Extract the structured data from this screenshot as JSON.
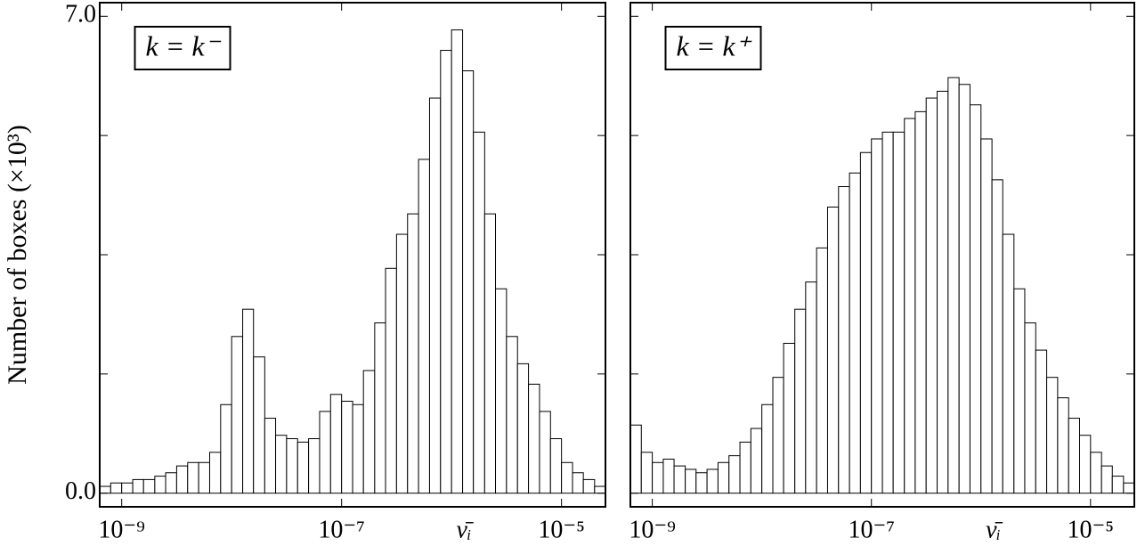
{
  "chart_data": [
    {
      "type": "histogram",
      "annotation": "k = k⁻",
      "ylabel": "Number of boxes (×10³)",
      "xlabel": "ν̄ᵢ",
      "log_x": true,
      "color": "#ffffff",
      "edgecolor": "#000000",
      "xlim": [
        6.31e-10,
        2.51e-05
      ],
      "ylim": [
        -0.2,
        7.2
      ],
      "xticks": [
        {
          "value": 1e-09,
          "label": "10⁻⁹"
        },
        {
          "value": 1e-07,
          "label": "10⁻⁷"
        },
        {
          "value": 1e-05,
          "label": "10⁻⁵"
        }
      ],
      "yticks": [
        {
          "value": 0,
          "label": "0.0"
        },
        1.75,
        3.5,
        5.25,
        {
          "value": 7,
          "label": "7.0"
        }
      ],
      "bins": [
        6.31e-10,
        7.94e-10,
        1e-09,
        1.26e-09,
        1.58e-09,
        2e-09,
        2.51e-09,
        3.16e-09,
        3.98e-09,
        5.01e-09,
        6.31e-09,
        7.94e-09,
        1e-08,
        1.26e-08,
        1.58e-08,
        2e-08,
        2.51e-08,
        3.16e-08,
        3.98e-08,
        5.01e-08,
        6.31e-08,
        7.94e-08,
        1e-07,
        1.26e-07,
        1.58e-07,
        2e-07,
        2.51e-07,
        3.16e-07,
        3.98e-07,
        5.01e-07,
        6.31e-07,
        7.94e-07,
        1e-06,
        1.26e-06,
        1.58e-06,
        2e-06,
        2.51e-06,
        3.16e-06,
        3.98e-06,
        5.01e-06,
        6.31e-06,
        7.94e-06,
        1e-05,
        1.26e-05,
        1.58e-05,
        2e-05,
        2.51e-05
      ],
      "values": [
        0.1,
        0.15,
        0.15,
        0.2,
        0.2,
        0.25,
        0.3,
        0.4,
        0.45,
        0.45,
        0.6,
        1.3,
        2.3,
        2.7,
        2.0,
        1.1,
        0.85,
        0.8,
        0.75,
        0.8,
        1.2,
        1.45,
        1.35,
        1.3,
        1.8,
        2.5,
        3.3,
        3.8,
        4.1,
        4.9,
        5.8,
        6.5,
        6.8,
        6.2,
        5.3,
        4.1,
        3.0,
        2.3,
        1.9,
        1.6,
        1.2,
        0.8,
        0.45,
        0.3,
        0.2,
        0.1
      ]
    },
    {
      "type": "histogram",
      "annotation": "k = k⁺",
      "xlabel": "ν̄ᵢ",
      "log_x": true,
      "color": "#ffffff",
      "edgecolor": "#000000",
      "xlim": [
        6.31e-10,
        2.51e-05
      ],
      "ylim": [
        -0.2,
        7.2
      ],
      "xticks": [
        {
          "value": 1e-09,
          "label": "10⁻⁹"
        },
        {
          "value": 1e-07,
          "label": "10⁻⁷"
        },
        {
          "value": 1e-05,
          "label": "10⁻⁵"
        }
      ],
      "yticks": [
        0,
        1.75,
        3.5,
        5.25,
        7
      ],
      "bins": [
        6.31e-10,
        7.94e-10,
        1e-09,
        1.26e-09,
        1.58e-09,
        2e-09,
        2.51e-09,
        3.16e-09,
        3.98e-09,
        5.01e-09,
        6.31e-09,
        7.94e-09,
        1e-08,
        1.26e-08,
        1.58e-08,
        2e-08,
        2.51e-08,
        3.16e-08,
        3.98e-08,
        5.01e-08,
        6.31e-08,
        7.94e-08,
        1e-07,
        1.26e-07,
        1.58e-07,
        2e-07,
        2.51e-07,
        3.16e-07,
        3.98e-07,
        5.01e-07,
        6.31e-07,
        7.94e-07,
        1e-06,
        1.26e-06,
        1.58e-06,
        2e-06,
        2.51e-06,
        3.16e-06,
        3.98e-06,
        5.01e-06,
        6.31e-06,
        7.94e-06,
        1e-05,
        1.26e-05,
        1.58e-05,
        2e-05,
        2.51e-05
      ],
      "values": [
        1.0,
        0.6,
        0.45,
        0.5,
        0.4,
        0.35,
        0.3,
        0.35,
        0.45,
        0.55,
        0.75,
        0.95,
        1.3,
        1.7,
        2.2,
        2.7,
        3.1,
        3.6,
        4.2,
        4.5,
        4.7,
        5.0,
        5.2,
        5.3,
        5.3,
        5.5,
        5.6,
        5.8,
        5.9,
        6.1,
        6.0,
        5.7,
        5.2,
        4.6,
        3.8,
        3.0,
        2.5,
        2.1,
        1.7,
        1.4,
        1.1,
        0.85,
        0.6,
        0.4,
        0.25,
        0.15
      ]
    }
  ]
}
